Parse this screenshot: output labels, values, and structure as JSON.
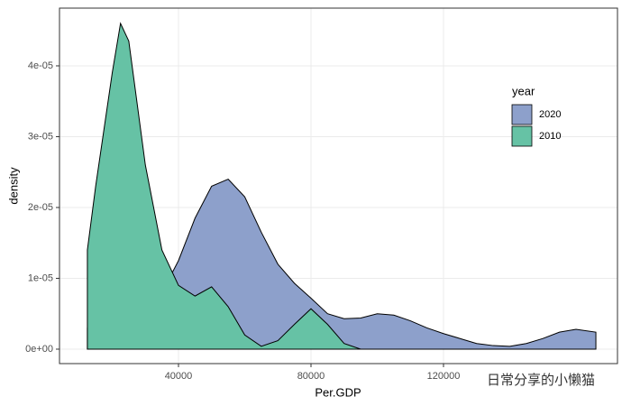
{
  "chart_data": {
    "type": "area",
    "x_label": "Per.GDP",
    "y_label": "density",
    "legend_title": "year",
    "legend_position": "right",
    "watermark": "日常分享的小懒猫",
    "x": [
      12500,
      15000,
      20000,
      22500,
      25000,
      30000,
      35000,
      40000,
      45000,
      50000,
      55000,
      60000,
      65000,
      70000,
      75000,
      80000,
      85000,
      90000,
      95000,
      100000,
      105000,
      110000,
      115000,
      120000,
      125000,
      130000,
      135000,
      140000,
      145000,
      150000,
      155000,
      160000,
      166000
    ],
    "series": [
      {
        "name": "2020",
        "color": "#8da0cb",
        "values": [
          3e-06,
          4.5e-06,
          6e-06,
          6.5e-06,
          7e-06,
          7.5e-06,
          8e-06,
          1.25e-05,
          1.85e-05,
          2.3e-05,
          2.4e-05,
          2.15e-05,
          1.65e-05,
          1.2e-05,
          9.3e-06,
          7.2e-06,
          5e-06,
          4.3e-06,
          4.4e-06,
          5e-06,
          4.8e-06,
          4e-06,
          3e-06,
          2.2e-06,
          1.5e-06,
          8e-07,
          5e-07,
          4e-07,
          8e-07,
          1.5e-06,
          2.4e-06,
          2.8e-06,
          2.4e-06
        ]
      },
      {
        "name": "2010",
        "color": "#66c2a5",
        "values": [
          1.4e-05,
          2.3e-05,
          3.9e-05,
          4.6e-05,
          4.35e-05,
          2.6e-05,
          1.4e-05,
          9e-06,
          7.5e-06,
          8.8e-06,
          6e-06,
          2e-06,
          4e-07,
          1.2e-06,
          3.5e-06,
          5.7e-06,
          3.5e-06,
          8e-07,
          0,
          null,
          null,
          null,
          null,
          null,
          null,
          null,
          null,
          null,
          null,
          null,
          null,
          null,
          null
        ]
      }
    ],
    "xlim": [
      4082,
      172517
    ],
    "xticks": [
      40000,
      80000,
      120000
    ],
    "ylim": [
      -2.04e-06,
      4.815e-05
    ],
    "yticks": [
      {
        "value": 0,
        "label": "0e+00"
      },
      {
        "value": 1e-05,
        "label": "1e-05"
      },
      {
        "value": 2e-05,
        "label": "2e-05"
      },
      {
        "value": 3e-05,
        "label": "3e-05"
      },
      {
        "value": 4e-05,
        "label": "4e-05"
      }
    ],
    "grid": true
  }
}
